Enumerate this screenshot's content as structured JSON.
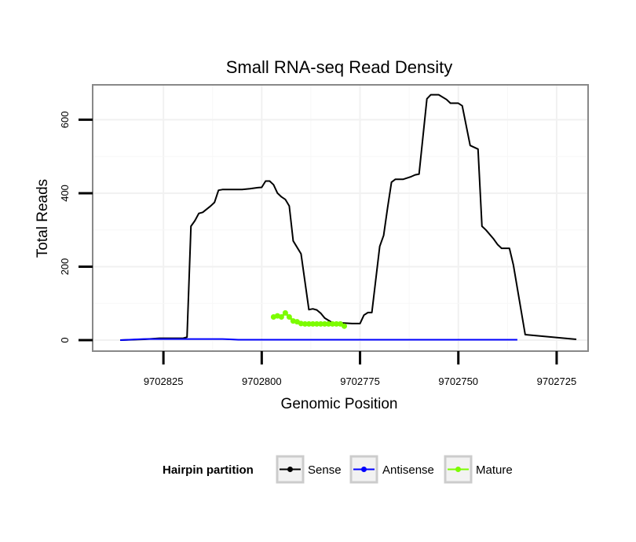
{
  "chart_data": {
    "type": "line",
    "title": "Small RNA-seq Read Density",
    "xlabel": "Genomic Position",
    "ylabel": "Total Reads",
    "x_reversed": true,
    "xlim": [
      9702843,
      9702717
    ],
    "ylim": [
      -30,
      695
    ],
    "x_ticks": [
      9702825,
      9702800,
      9702775,
      9702750,
      9702725
    ],
    "x_tick_labels": [
      "9702825",
      "9702800",
      "9702775",
      "9702750",
      "9702725"
    ],
    "y_ticks": [
      0,
      200,
      400,
      600
    ],
    "y_tick_labels": [
      "0",
      "200",
      "400",
      "600"
    ],
    "grid": true,
    "legend": {
      "title": "Hairpin partition",
      "position": "bottom",
      "entries": [
        "Sense",
        "Antisense",
        "Mature"
      ]
    },
    "series": [
      {
        "name": "Sense",
        "color": "#000000",
        "x": [
          9702836,
          9702830,
          9702826,
          9702820,
          9702819,
          9702818,
          9702817,
          9702816,
          9702815,
          9702813,
          9702812,
          9702811,
          9702810,
          9702805,
          9702803,
          9702801,
          9702800,
          9702799,
          9702798,
          9702797,
          9702796,
          9702795,
          9702794,
          9702793,
          9702792,
          9702790,
          9702788,
          9702787,
          9702786,
          9702785,
          9702784,
          9702782,
          9702781,
          9702780,
          9702777,
          9702775,
          9702774,
          9702773,
          9702772,
          9702770,
          9702769,
          9702768,
          9702767,
          9702766,
          9702765,
          9702764,
          9702762,
          9702761,
          9702760,
          9702758,
          9702757,
          9702756,
          9702755,
          9702753,
          9702752,
          9702751,
          9702750,
          9702749,
          9702747,
          9702745,
          9702744,
          9702743,
          9702741,
          9702740,
          9702739,
          9702737,
          9702736,
          9702733,
          9702720
        ],
        "values": [
          0,
          2,
          5,
          5,
          8,
          310,
          325,
          345,
          348,
          365,
          375,
          408,
          410,
          410,
          412,
          415,
          416,
          433,
          433,
          423,
          400,
          390,
          383,
          365,
          270,
          235,
          83,
          85,
          82,
          73,
          60,
          47,
          47,
          47,
          45,
          45,
          68,
          75,
          75,
          255,
          285,
          360,
          430,
          438,
          438,
          438,
          445,
          450,
          452,
          657,
          668,
          668,
          668,
          655,
          645,
          645,
          645,
          638,
          530,
          520,
          310,
          300,
          275,
          260,
          250,
          250,
          205,
          15,
          2
        ]
      },
      {
        "name": "Antisense",
        "color": "#0000ff",
        "x": [
          9702836,
          9702830,
          9702826,
          9702810,
          9702808,
          9702806,
          9702760,
          9702735
        ],
        "values": [
          0,
          3,
          3,
          3,
          2,
          1,
          1,
          1
        ]
      },
      {
        "name": "Mature",
        "color": "#7cfc00",
        "x": [
          9702797,
          9702796,
          9702795,
          9702794,
          9702793,
          9702792,
          9702791,
          9702790,
          9702789,
          9702788,
          9702787,
          9702786,
          9702785,
          9702784,
          9702783,
          9702782,
          9702781,
          9702780,
          9702779
        ],
        "values": [
          63,
          66,
          63,
          74,
          63,
          52,
          50,
          45,
          44,
          44,
          44,
          44,
          44,
          44,
          44,
          44,
          44,
          44,
          38
        ]
      }
    ]
  }
}
